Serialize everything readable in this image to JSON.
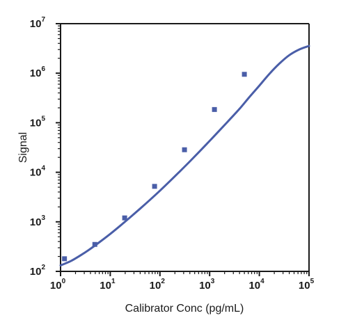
{
  "chart_data": {
    "type": "scatter",
    "title": "",
    "xlabel": "Calibrator Conc (pg/mL)",
    "ylabel": "Signal",
    "xscale": "log",
    "yscale": "log",
    "xlim": [
      1,
      100000
    ],
    "ylim": [
      100,
      10000000
    ],
    "grid": false,
    "legend": "none",
    "x_ticks": [
      {
        "base": "10",
        "exp": "0"
      },
      {
        "base": "10",
        "exp": "1"
      },
      {
        "base": "10",
        "exp": "2"
      },
      {
        "base": "10",
        "exp": "3"
      },
      {
        "base": "10",
        "exp": "4"
      },
      {
        "base": "10",
        "exp": "5"
      }
    ],
    "y_ticks": [
      {
        "base": "10",
        "exp": "2"
      },
      {
        "base": "10",
        "exp": "3"
      },
      {
        "base": "10",
        "exp": "4"
      },
      {
        "base": "10",
        "exp": "5"
      },
      {
        "base": "10",
        "exp": "6"
      },
      {
        "base": "10",
        "exp": "7"
      }
    ],
    "points": {
      "x": [
        1.2,
        4.9,
        19.5,
        78,
        312,
        1250,
        5000
      ],
      "y": [
        180,
        350,
        1200,
        5200,
        28500,
        185000,
        950000
      ]
    },
    "fit_curve": {
      "x": [
        1,
        1.58,
        2.51,
        3.98,
        6.31,
        10,
        15.8,
        25.1,
        39.8,
        63.1,
        100,
        158,
        251,
        398,
        631,
        1000,
        1580,
        2510,
        3980,
        6310,
        10000,
        15800,
        25100,
        39800,
        63100,
        100000
      ],
      "y": [
        132,
        160,
        210,
        285,
        400,
        570,
        830,
        1230,
        1840,
        2780,
        4250,
        6600,
        10400,
        16500,
        26500,
        43000,
        70000,
        115000,
        190000,
        330000,
        560000,
        960000,
        1550000,
        2300000,
        3000000,
        3550000
      ]
    },
    "colors": {
      "series": "#4a5ea8",
      "axis": "#1a1a1a"
    }
  }
}
